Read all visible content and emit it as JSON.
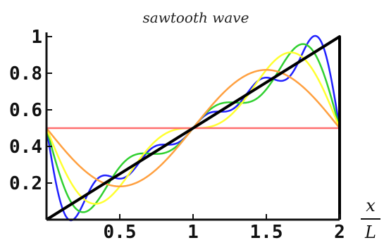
{
  "chart_data": {
    "type": "line",
    "title": "sawtooth wave",
    "xlabel_top": "x",
    "xlabel_bottom": "L",
    "xlim": [
      0,
      2
    ],
    "ylim": [
      0,
      1
    ],
    "x_ticks": [
      {
        "value": 0.5,
        "label": "0.5"
      },
      {
        "value": 1,
        "label": "1"
      },
      {
        "value": 1.5,
        "label": "1.5"
      },
      {
        "value": 2,
        "label": "2"
      }
    ],
    "y_ticks": [
      {
        "value": 0.2,
        "label": "0.2"
      },
      {
        "value": 0.4,
        "label": "0.4"
      },
      {
        "value": 0.6,
        "label": "0.6"
      },
      {
        "value": 0.8,
        "label": "0.8"
      },
      {
        "value": 1,
        "label": "1"
      }
    ],
    "grid": false,
    "legend": "none",
    "series": [
      {
        "color": "#000000",
        "terms": null,
        "points": [
          [
            0,
            0
          ],
          [
            2,
            1
          ],
          [
            2,
            0
          ]
        ]
      },
      {
        "color": "#ff6f6f",
        "terms": 0
      },
      {
        "color": "#ffa040",
        "terms": 1
      },
      {
        "color": "#ffff30",
        "terms": 2
      },
      {
        "color": "#30d030",
        "terms": 3
      },
      {
        "color": "#2020ff",
        "terms": 5
      }
    ]
  }
}
